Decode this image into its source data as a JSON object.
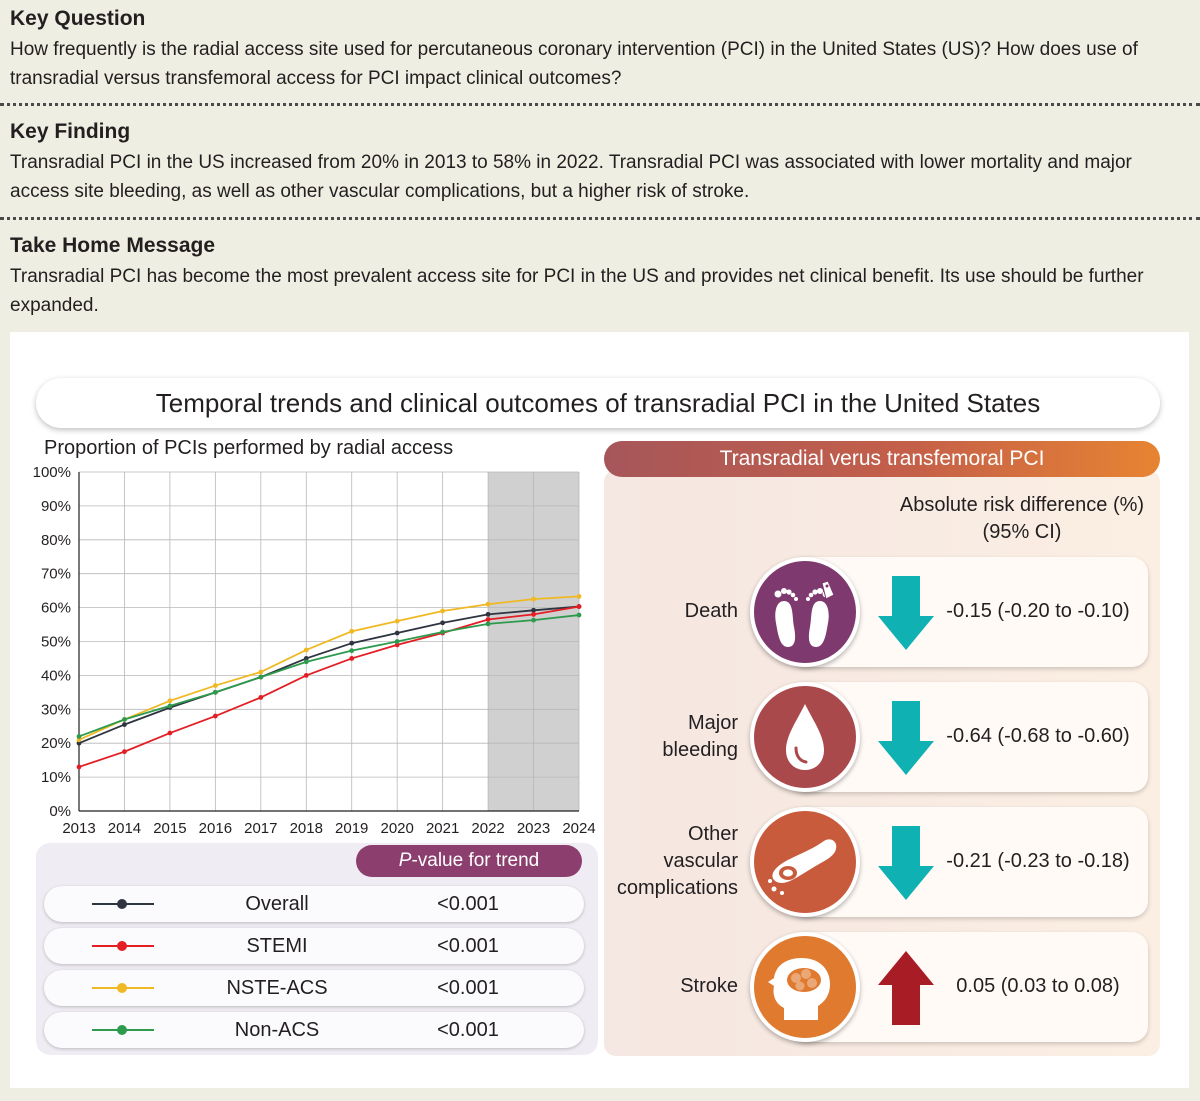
{
  "key_question": {
    "heading": "Key Question",
    "text": "How frequently is the radial access site used for percutaneous coronary intervention (PCI) in the United States (US)? How does use of transradial versus transfemoral access for PCI impact clinical outcomes?"
  },
  "key_finding": {
    "heading": "Key Finding",
    "text": "Transradial PCI in the US increased from 20% in 2013 to 58% in 2022. Transradial PCI was associated with lower mortality and major access site bleeding, as well as other vascular complications, but a higher risk of stroke."
  },
  "take_home": {
    "heading": "Take Home Message",
    "text": "Transradial PCI has become the most prevalent access site for PCI in the US and provides net clinical benefit. Its use should be further expanded."
  },
  "figure_title": "Temporal trends and clinical outcomes of transradial PCI in the United States",
  "chart_data": {
    "type": "line",
    "title": "Proportion of PCIs performed by radial access",
    "x": [
      "2013",
      "2014",
      "2015",
      "2016",
      "2017",
      "2018",
      "2019",
      "2020",
      "2021",
      "2022",
      "2023",
      "2024"
    ],
    "y_ticks": [
      "0%",
      "10%",
      "20%",
      "30%",
      "40%",
      "50%",
      "60%",
      "70%",
      "80%",
      "90%",
      "100%"
    ],
    "ylim": [
      0,
      100
    ],
    "shaded_x_range": [
      "2022",
      "2024"
    ],
    "shade_color": "#d0d0d0",
    "grid": true,
    "series": [
      {
        "name": "Overall",
        "color": "#2e3440",
        "values": [
          20,
          25.5,
          30.5,
          35,
          39.5,
          45,
          49.5,
          52.5,
          55.5,
          58,
          59.2,
          60.3
        ]
      },
      {
        "name": "STEMI",
        "color": "#e31e24",
        "values": [
          13,
          17.5,
          23,
          28,
          33.5,
          40,
          45,
          49,
          52.5,
          56.5,
          58,
          60.3
        ]
      },
      {
        "name": "NSTE-ACS",
        "color": "#f0b823",
        "values": [
          21,
          27,
          32.5,
          37,
          41,
          47.5,
          53,
          56,
          59,
          61,
          62.5,
          63.3
        ]
      },
      {
        "name": "Non-ACS",
        "color": "#2e9a4d",
        "values": [
          22,
          27,
          31,
          35,
          39.5,
          44,
          47.3,
          50,
          52.8,
          55.2,
          56.3,
          57.8
        ]
      }
    ],
    "p_value_header": {
      "italic": "P",
      "rest": "-value for trend"
    },
    "p_values": [
      "<0.001",
      "<0.001",
      "<0.001",
      "<0.001"
    ]
  },
  "outcomes": {
    "header": "Transradial verus transfemoral PCI",
    "measure_label": [
      "Absolute risk difference (%)",
      "(95% CI)"
    ],
    "items": [
      {
        "label": [
          "Death"
        ],
        "value": "-0.15 (-0.20 to -0.10)",
        "direction": "down",
        "icon": "feet-tag-icon",
        "circle_color": "#7e3a6f"
      },
      {
        "label": [
          "Major",
          "bleeding"
        ],
        "value": "-0.64 (-0.68 to -0.60)",
        "direction": "down",
        "icon": "blood-drop-icon",
        "circle_color": "#a9494c"
      },
      {
        "label": [
          "Other",
          "vascular",
          "complications"
        ],
        "value": "-0.21 (-0.23 to -0.18)",
        "direction": "down",
        "icon": "blood-vessel-icon",
        "circle_color": "#c95b3d"
      },
      {
        "label": [
          "Stroke"
        ],
        "value": "0.05 (0.03 to 0.08)",
        "direction": "up",
        "icon": "brain-head-icon",
        "circle_color": "#e07a2e"
      }
    ],
    "arrow_down_color": "#10b1b3",
    "arrow_up_color": "#a81c26"
  }
}
